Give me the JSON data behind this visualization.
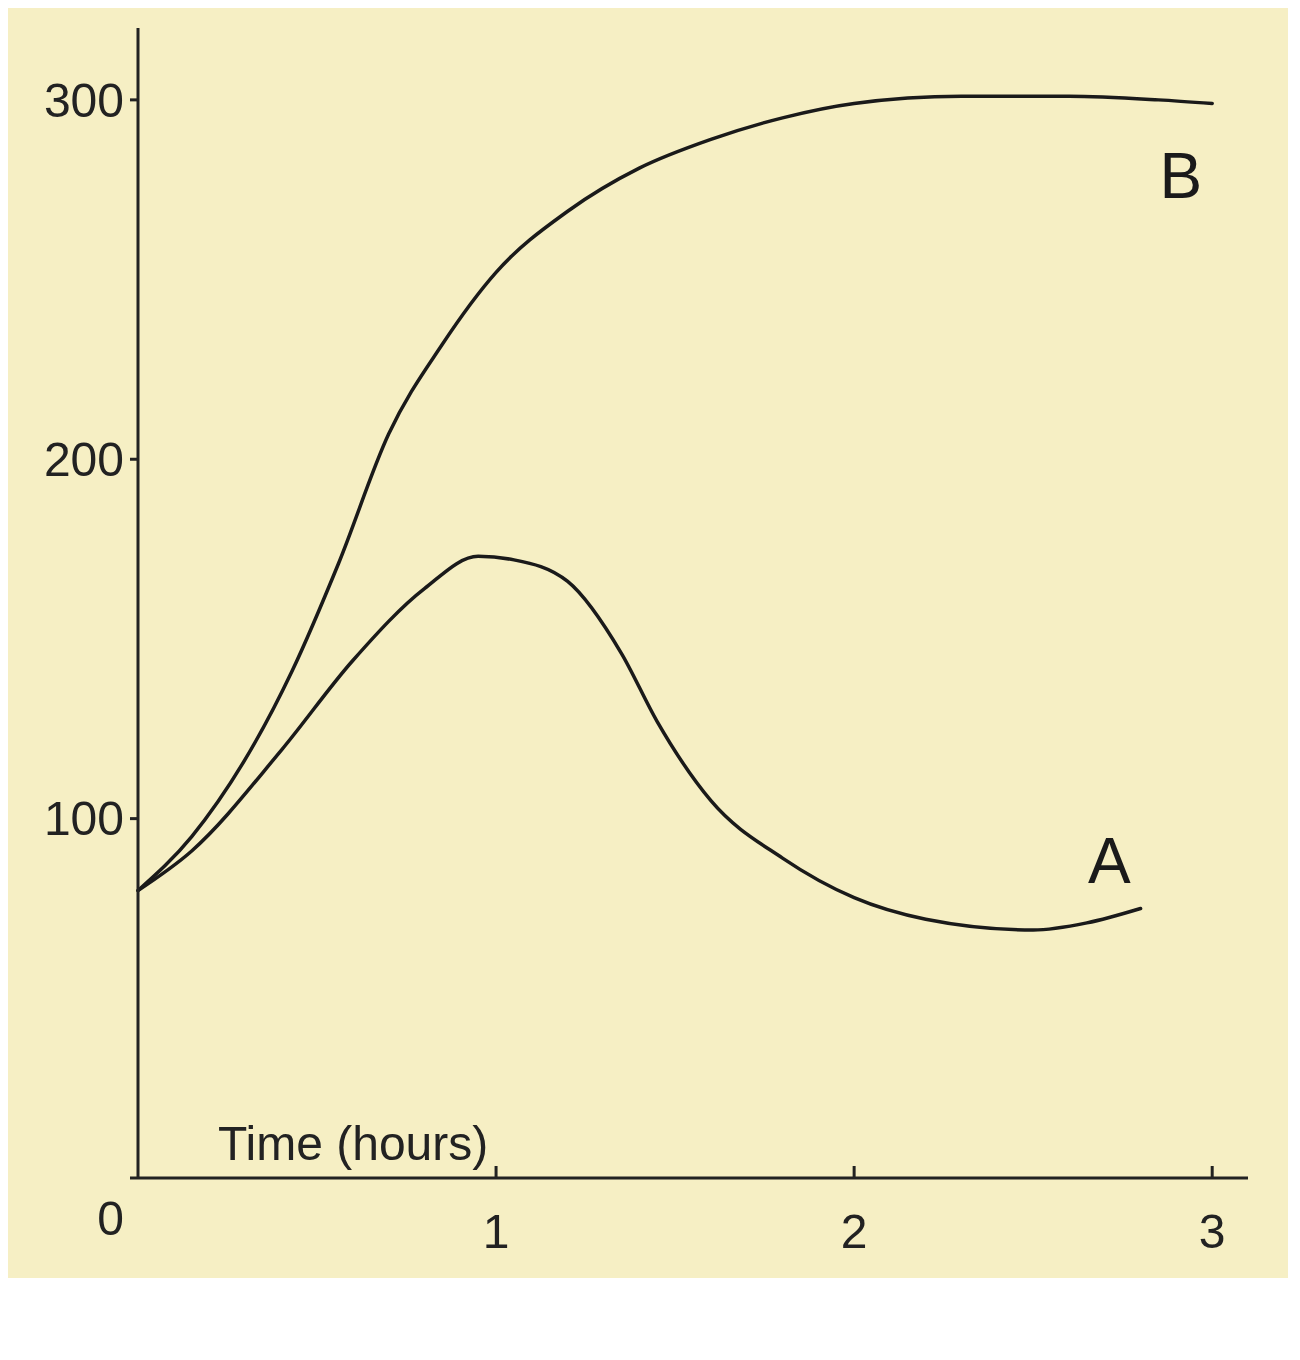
{
  "chart_data": {
    "type": "line",
    "xlabel": "Time (hours)",
    "xlim": [
      0,
      3.1
    ],
    "ylim": [
      0,
      320
    ],
    "xticks": [
      1,
      2,
      3
    ],
    "yticks": [
      0,
      100,
      200,
      300
    ],
    "grid": false,
    "marker": "none",
    "line_style": "solid",
    "series": [
      {
        "name": "A",
        "color": "#1a1a1a",
        "x": [
          0,
          0.15,
          0.4,
          0.6,
          0.8,
          0.95,
          1.05,
          1.2,
          1.35,
          1.45,
          1.6,
          1.8,
          2,
          2.2,
          2.5,
          2.65,
          2.8
        ],
        "values": [
          80,
          91,
          119,
          144,
          164,
          173,
          172,
          166,
          146,
          127,
          105,
          89,
          78,
          72,
          69,
          71,
          75
        ]
      },
      {
        "name": "B",
        "color": "#1a1a1a",
        "x": [
          0,
          0.15,
          0.43,
          0.56,
          0.7,
          0.85,
          1,
          1.2,
          1.4,
          1.6,
          1.8,
          2,
          2.3,
          2.6,
          2.85,
          3
        ],
        "values": [
          80,
          95,
          141,
          171,
          207,
          232,
          252,
          269,
          281,
          289,
          295,
          299,
          301,
          301,
          300,
          299
        ]
      }
    ]
  }
}
